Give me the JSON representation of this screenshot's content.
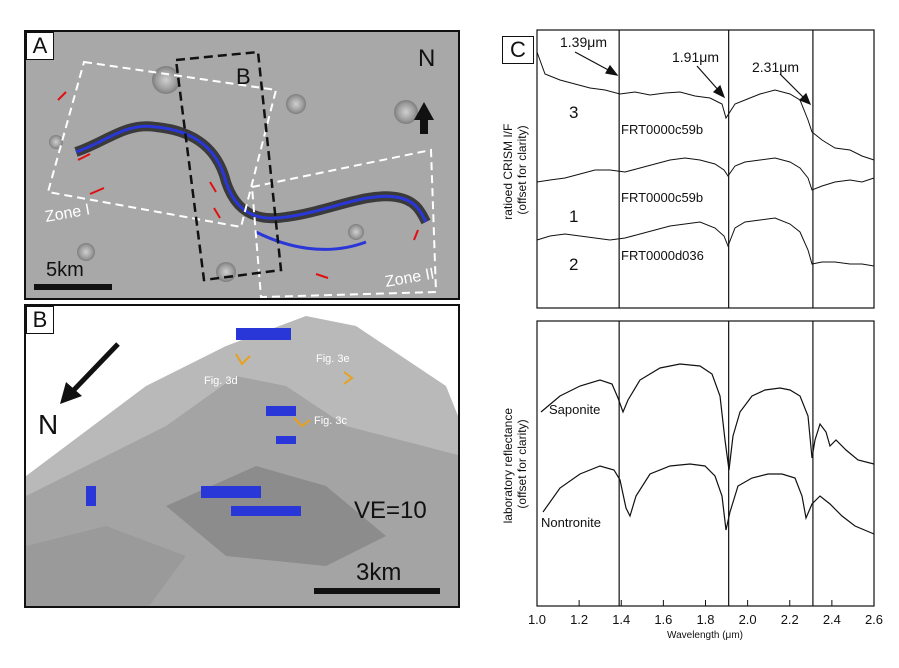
{
  "panels": {
    "A": {
      "letter": "A",
      "inset_letter": "B",
      "north": "N",
      "zone1": "Zone I",
      "zone2": "Zone II",
      "scale": "5km"
    },
    "B": {
      "letter": "B",
      "north": "N",
      "fig3d": "Fig. 3d",
      "fig3e": "Fig. 3e",
      "fig3c": "Fig. 3c",
      "ve": "VE=10",
      "scale": "3km"
    },
    "C": {
      "letter": "C"
    }
  },
  "chart_data": [
    {
      "type": "line",
      "title": "",
      "xlabel": "",
      "ylabel": "ratioed CRISM I/F (offset for clarity)",
      "xlim": [
        1.0,
        2.6
      ],
      "vlines": [
        1.39,
        1.91,
        2.31
      ],
      "annotations": [
        "1.39μm",
        "1.91μm",
        "2.31μm"
      ],
      "series_labels": [
        {
          "number": "3",
          "id": "FRT0000c59b"
        },
        {
          "number": "1",
          "id": "FRT0000c59b"
        },
        {
          "number": "2",
          "id": "FRT0000d036"
        }
      ]
    },
    {
      "type": "line",
      "title": "",
      "xlabel": "Wavelength (μm)",
      "ylabel": "laboratory reflectance (offset for clarity)",
      "xlim": [
        1.0,
        2.6
      ],
      "xticks": [
        "1.0",
        "1.2",
        "1.4",
        "1.6",
        "1.8",
        "2.0",
        "2.2",
        "2.4",
        "2.6"
      ],
      "vlines": [
        1.39,
        1.91,
        2.31
      ],
      "series": [
        {
          "name": "Saponite"
        },
        {
          "name": "Nontronite"
        }
      ]
    }
  ]
}
